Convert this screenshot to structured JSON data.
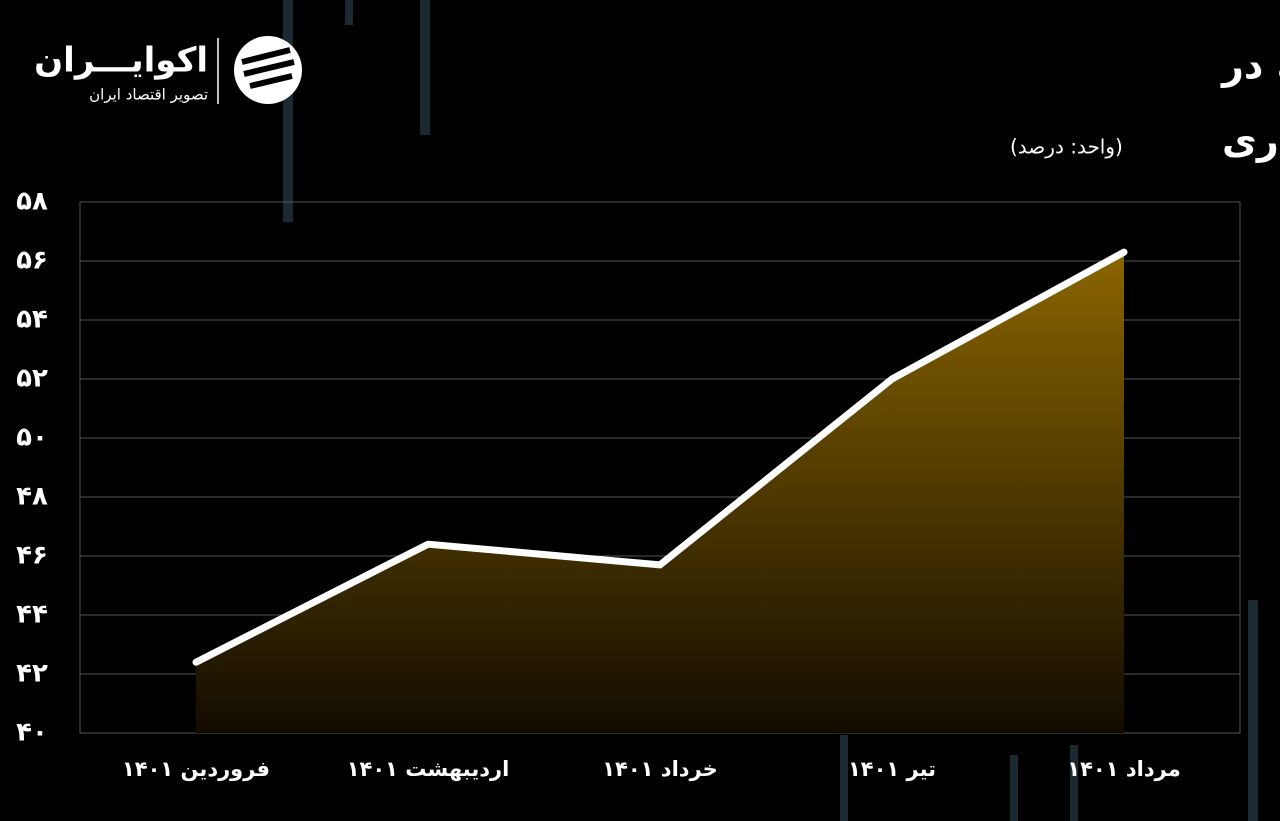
{
  "logo": {
    "name": "اکوایـــران",
    "tagline": "تصویر اقتصاد ایران"
  },
  "chart_data": {
    "type": "area",
    "title": [
      "روند رشد نقطه ای سپرده قرض الحسنه در",
      "سال جاری"
    ],
    "subtitle": "(واحد: درصد)",
    "categories": [
      "فروردین ۱۴۰۱",
      "اردیبهشت ۱۴۰۱",
      "خرداد ۱۴۰۱",
      "تیر ۱۴۰۱",
      "مرداد ۱۴۰۱"
    ],
    "values": [
      42.4,
      46.4,
      45.7,
      52.0,
      56.3
    ],
    "color": "#8a6500",
    "line_color": "#ffffff",
    "ylim": [
      40,
      58
    ],
    "yticks": [
      {
        "value": 40,
        "label": "۴۰"
      },
      {
        "value": 42,
        "label": "۴۲"
      },
      {
        "value": 44,
        "label": "۴۴"
      },
      {
        "value": 46,
        "label": "۴۶"
      },
      {
        "value": 48,
        "label": "۴۸"
      },
      {
        "value": 50,
        "label": "۵۰"
      },
      {
        "value": 52,
        "label": "۵۲"
      },
      {
        "value": 54,
        "label": "۵۴"
      },
      {
        "value": 56,
        "label": "۵۶"
      },
      {
        "value": 58,
        "label": "۵۸"
      }
    ],
    "grid": true
  }
}
